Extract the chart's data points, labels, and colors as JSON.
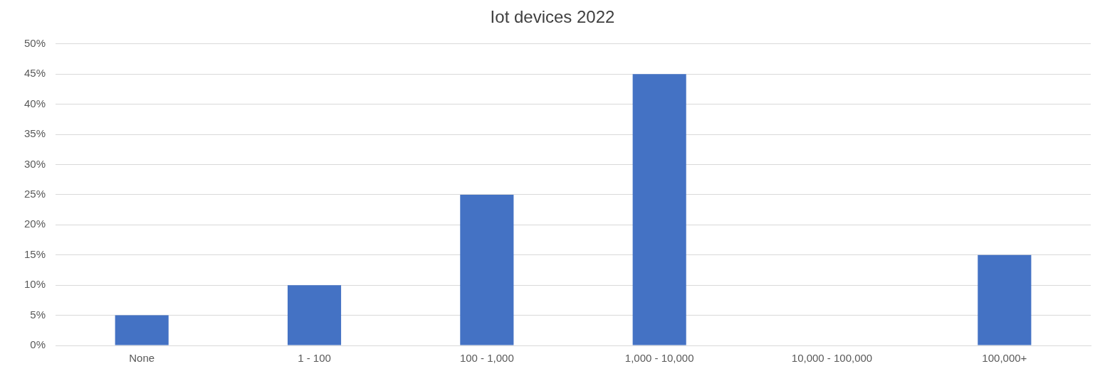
{
  "chart_data": {
    "type": "bar",
    "title": "Iot devices 2022",
    "categories": [
      "None",
      "1 - 100",
      "100 - 1,000",
      "1,000 - 10,000",
      "10,000 - 100,000",
      "100,000+"
    ],
    "values": [
      5,
      10,
      25,
      45,
      0,
      15
    ],
    "color": "#4472c4",
    "ylim": [
      0,
      50
    ],
    "yticks": [
      {
        "value": 0,
        "label": "0%"
      },
      {
        "value": 5,
        "label": "5%"
      },
      {
        "value": 10,
        "label": "10%"
      },
      {
        "value": 15,
        "label": "15%"
      },
      {
        "value": 20,
        "label": "20%"
      },
      {
        "value": 25,
        "label": "25%"
      },
      {
        "value": 30,
        "label": "30%"
      },
      {
        "value": 35,
        "label": "35%"
      },
      {
        "value": 40,
        "label": "40%"
      },
      {
        "value": 45,
        "label": "45%"
      },
      {
        "value": 50,
        "label": "50%"
      }
    ],
    "grid": "y",
    "legend": false
  }
}
